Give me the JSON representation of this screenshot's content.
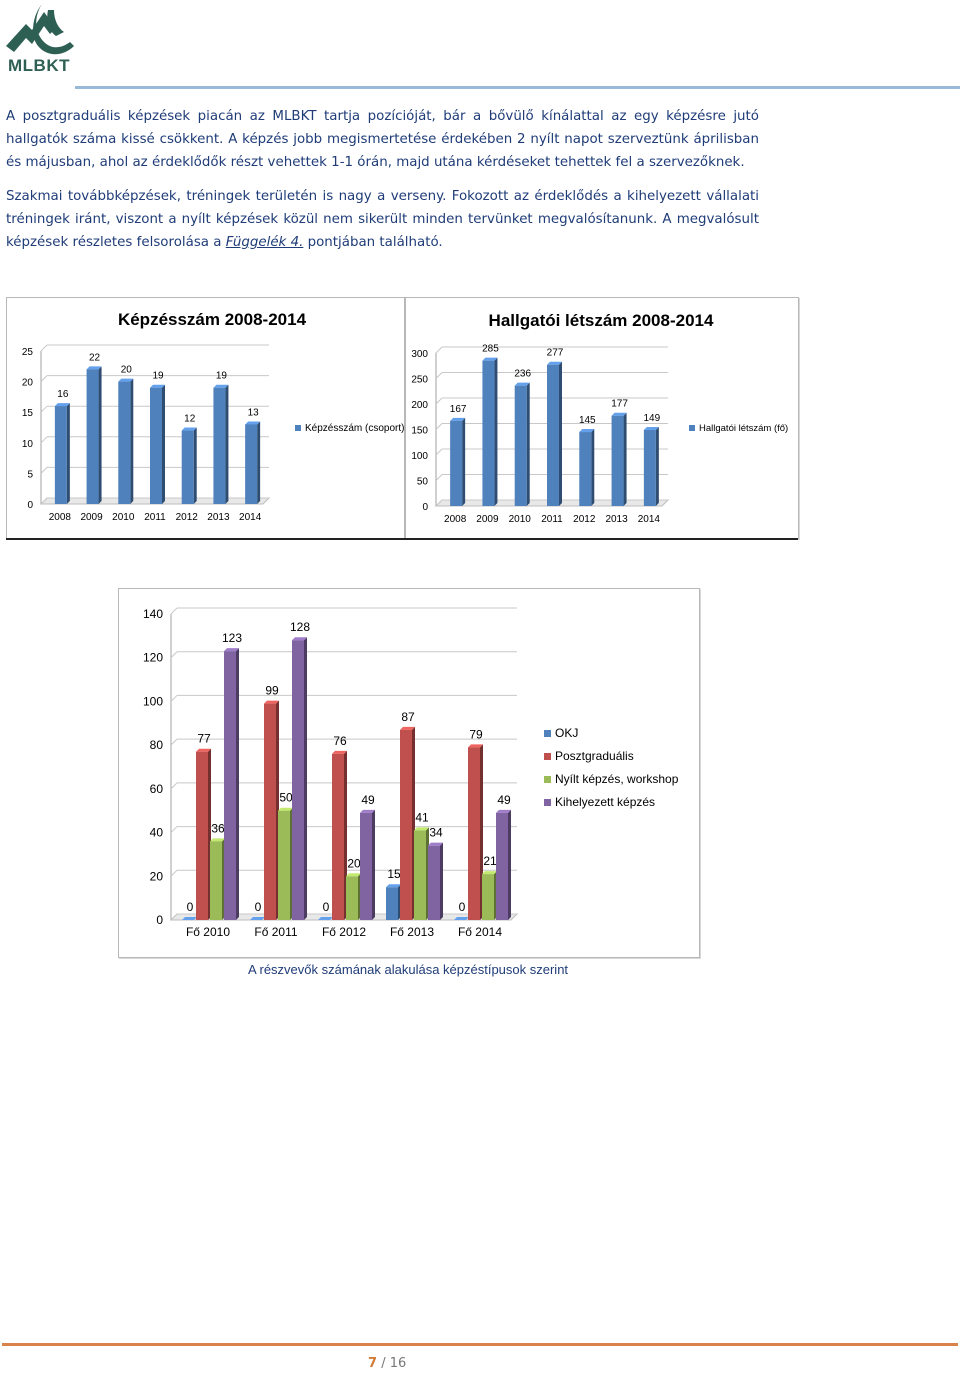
{
  "logo": {
    "name": "MLBKT"
  },
  "paragraphs": {
    "p1": "A posztgraduális képzések piacán az MLBKT tartja pozícióját, bár a bővülő kínálattal az egy képzésre jutó hallgatók száma kissé csökkent. A képzés jobb megismertetése érdekében 2 nyílt napot szerveztünk áprilisban és májusban, ahol az érdeklődők részt vehettek 1-1 órán, majd utána kérdéseket tehettek fel a szervezőknek.",
    "p2_before": "Szakmai továbbképzések, tréningek területén is nagy a verseny. Fokozott az érdeklődés a kihelyezett vállalati tréningek iránt, viszont a nyílt képzések közül nem sikerült minden tervünket megvalósítanunk. A megvalósult képzések részletes felsorolása a ",
    "p2_ref": "Függelék 4.",
    "p2_after": " pontjában található."
  },
  "chart_data": [
    {
      "type": "bar",
      "title": "Képzésszám 2008-2014",
      "categories": [
        "2008",
        "2009",
        "2010",
        "2011",
        "2012",
        "2013",
        "2014"
      ],
      "series": [
        {
          "name": "Képzésszám (csoport)",
          "values": [
            16,
            22,
            20,
            19,
            12,
            19,
            13
          ],
          "color": "#4f81bd"
        }
      ],
      "ylim": [
        0,
        25
      ],
      "yticks": [
        0,
        5,
        10,
        15,
        20,
        25
      ],
      "legend": "right",
      "grid": true
    },
    {
      "type": "bar",
      "title": "Hallgatói létszám 2008-2014",
      "categories": [
        "2008",
        "2009",
        "2010",
        "2011",
        "2012",
        "2013",
        "2014"
      ],
      "series": [
        {
          "name": "Hallgatói létszám (fő)",
          "values": [
            167,
            285,
            236,
            277,
            145,
            177,
            149
          ],
          "color": "#4f81bd"
        }
      ],
      "ylim": [
        0,
        300
      ],
      "yticks": [
        0,
        50,
        100,
        150,
        200,
        250,
        300
      ],
      "legend": "right",
      "grid": true
    },
    {
      "type": "bar",
      "title": "",
      "categories": [
        "Fő 2010",
        "Fő 2011",
        "Fő 2012",
        "Fő 2013",
        "Fő 2014"
      ],
      "series": [
        {
          "name": "OKJ",
          "values": [
            0,
            0,
            0,
            15,
            0
          ],
          "color": "#4f81bd"
        },
        {
          "name": "Posztgraduális",
          "values": [
            77,
            99,
            76,
            87,
            79
          ],
          "color": "#c0504d"
        },
        {
          "name": "Nyílt képzés, workshop",
          "values": [
            36,
            50,
            20,
            41,
            21
          ],
          "color": "#9bbb59"
        },
        {
          "name": "Kihelyezett képzés",
          "values": [
            123,
            128,
            49,
            34,
            49
          ],
          "color": "#8064a2"
        }
      ],
      "ylim": [
        0,
        140
      ],
      "yticks": [
        0,
        20,
        40,
        60,
        80,
        100,
        120,
        140
      ],
      "legend": "right",
      "grid": true
    }
  ],
  "caption": "A részvevők számának alakulása képzéstípusok szerint",
  "pager": {
    "current": "7",
    "separator": "/",
    "total": "16"
  }
}
